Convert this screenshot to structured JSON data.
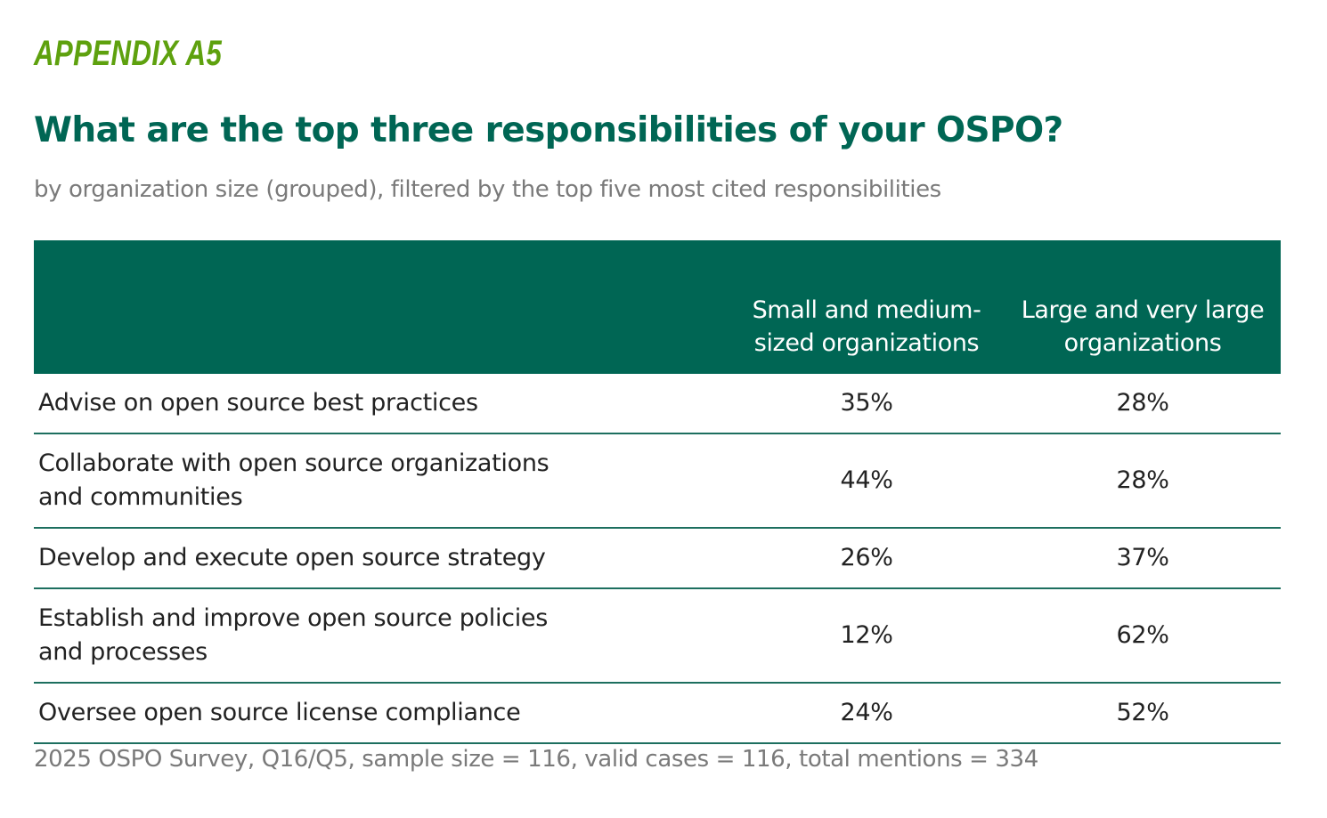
{
  "appendix_label": "APPENDIX A5",
  "source_note": "2025 OSPO Survey, Q16/Q5, sample size = 116, valid cases = 116, total mentions = 334",
  "colors": {
    "appendix": "#5ea10e",
    "title": "#006654",
    "header_bg": "#006654",
    "muted_text": "#7a7a7a"
  },
  "chart_data": {
    "type": "table",
    "title": "What are the top three responsibilities of your OSPO?",
    "subtitle": "by organization size (grouped), filtered by the top five most cited responsibilities",
    "columns": [
      "",
      "Small and medium-sized organizations",
      "Large and very large organizations"
    ],
    "column_header_lines": [
      [
        "Small and medium-",
        "sized organizations"
      ],
      [
        "Large and very large",
        "organizations"
      ]
    ],
    "rows": [
      {
        "label": "Advise on open source best practices",
        "values": [
          "35%",
          "28%"
        ]
      },
      {
        "label": "Collaborate with open source organizations and communities",
        "values": [
          "44%",
          "28%"
        ]
      },
      {
        "label": "Develop and execute open source strategy",
        "values": [
          "26%",
          "37%"
        ]
      },
      {
        "label": "Establish and improve open source policies and processes",
        "values": [
          "12%",
          "62%"
        ]
      },
      {
        "label": "Oversee open source license compliance",
        "values": [
          "24%",
          "52%"
        ]
      }
    ]
  }
}
